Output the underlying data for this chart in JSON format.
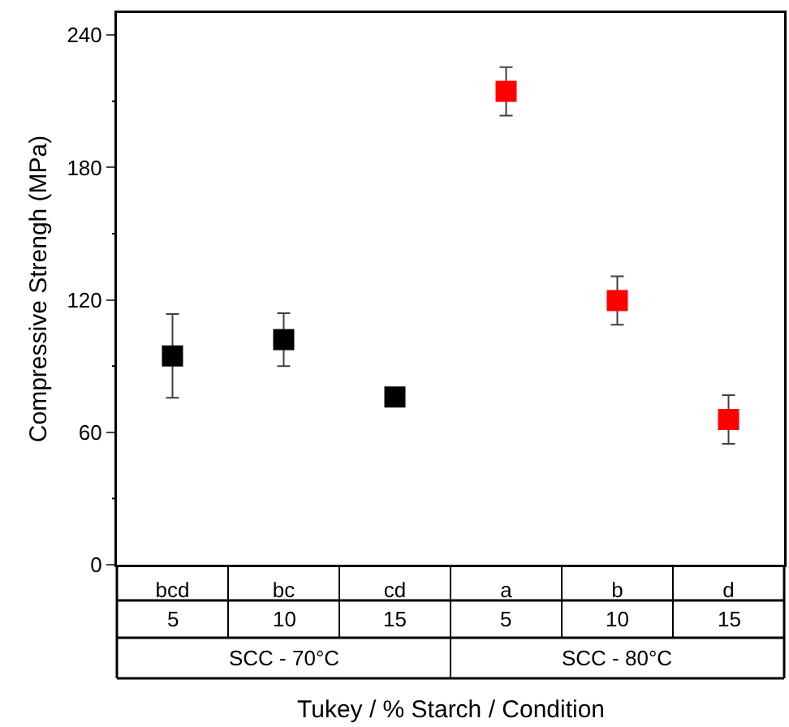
{
  "chart_data": {
    "type": "scatter",
    "xlabel": "Tukey / % Starch / Condition",
    "ylabel": "Compressive Strengh (MPa)",
    "categories": [
      "bcd",
      "bc",
      "cd",
      "a",
      "b",
      "d"
    ],
    "series": [
      {
        "color": "#000000",
        "values": [
          94.6,
          102,
          76,
          null,
          null,
          null
        ],
        "errors": [
          19,
          12,
          null,
          null,
          null,
          null
        ]
      },
      {
        "color": "#ff0000",
        "values": [
          null,
          null,
          null,
          214.5,
          119.7,
          65.8
        ],
        "errors": [
          null,
          null,
          null,
          11,
          11,
          11
        ]
      }
    ],
    "annotations": [
      "5",
      "10",
      "15",
      "5",
      "10",
      "15",
      "SCC - 70°C",
      "SCC - 80°C"
    ],
    "ylim": [
      0,
      250
    ],
    "yticks": [
      0,
      {
        "value": 30,
        "label": null
      },
      60,
      {
        "value": 90,
        "label": null
      },
      120,
      {
        "value": 150,
        "label": null
      },
      180,
      {
        "value": 210,
        "label": null
      },
      240
    ],
    "grid": false,
    "marker": "square"
  }
}
